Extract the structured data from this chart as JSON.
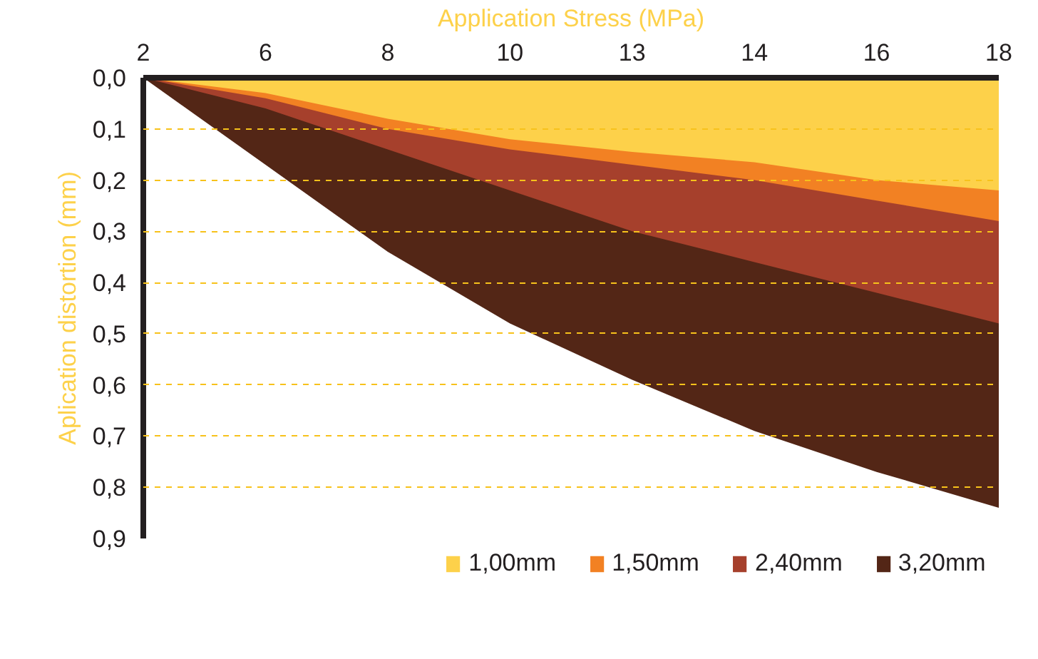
{
  "chart_data": {
    "type": "area",
    "xlabel": "Application Stress (MPa)",
    "ylabel": "Aplication distortion (mm)",
    "categories": [
      "2",
      "6",
      "8",
      "10",
      "13",
      "14",
      "16",
      "18"
    ],
    "series": [
      {
        "name": "1,00mm",
        "color": "#fdd14a",
        "values": [
          0,
          0.03,
          0.08,
          0.12,
          0.145,
          0.165,
          0.2,
          0.22
        ]
      },
      {
        "name": "1,50mm",
        "color": "#f28123",
        "values": [
          0,
          0.04,
          0.1,
          0.14,
          0.17,
          0.2,
          0.24,
          0.28
        ]
      },
      {
        "name": "2,40mm",
        "color": "#a6402c",
        "values": [
          0,
          0.06,
          0.14,
          0.22,
          0.3,
          0.36,
          0.42,
          0.48
        ]
      },
      {
        "name": "3,20mm",
        "color": "#532616",
        "values": [
          0,
          0.17,
          0.34,
          0.48,
          0.59,
          0.69,
          0.77,
          0.84
        ]
      }
    ],
    "ylim": [
      0.9,
      0.0
    ],
    "yticks": [
      {
        "value": 0.0,
        "label": "0,0"
      },
      {
        "value": 0.1,
        "label": "0,1"
      },
      {
        "value": 0.2,
        "label": "0,2"
      },
      {
        "value": 0.3,
        "label": "0,3"
      },
      {
        "value": 0.4,
        "label": "0,4"
      },
      {
        "value": 0.5,
        "label": "0,5"
      },
      {
        "value": 0.6,
        "label": "0,6"
      },
      {
        "value": 0.7,
        "label": "0,7"
      },
      {
        "value": 0.8,
        "label": "0,8"
      },
      {
        "value": 0.9,
        "label": "0,9"
      }
    ],
    "grid": "y",
    "legend": "bottom"
  }
}
